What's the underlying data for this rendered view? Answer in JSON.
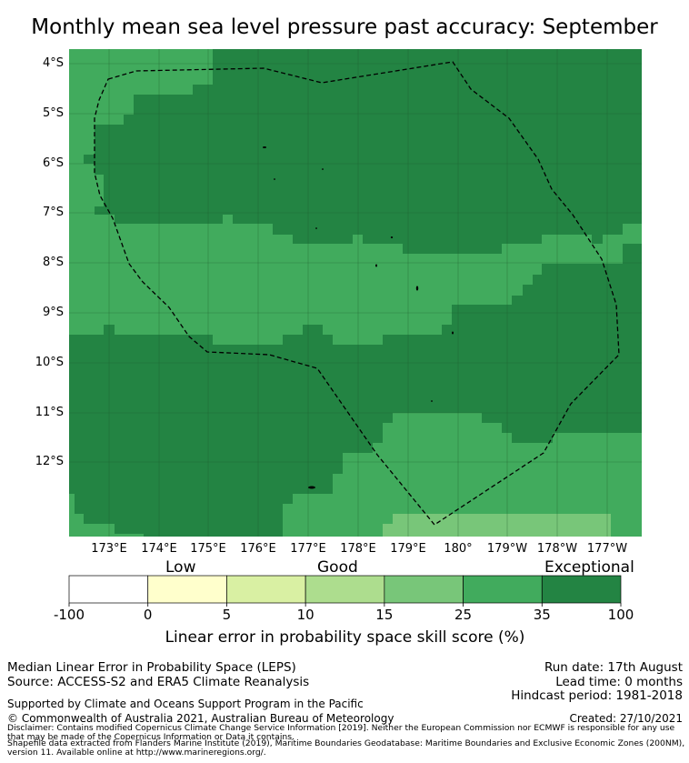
{
  "title": "Monthly mean sea level pressure past accuracy: September",
  "map": {
    "lat_labels": [
      "4°S",
      "5°S",
      "6°S",
      "7°S",
      "8°S",
      "9°S",
      "10°S",
      "11°S",
      "12°S"
    ],
    "lon_labels": [
      "173°E",
      "174°E",
      "175°E",
      "176°E",
      "177°E",
      "178°E",
      "179°E",
      "180°",
      "179°W",
      "178°W",
      "177°W"
    ],
    "outline_style": "dashed"
  },
  "colorbar": {
    "category_labels": [
      "Low",
      "Good",
      "Exceptional"
    ],
    "tick_labels": [
      "-100",
      "0",
      "5",
      "10",
      "15",
      "25",
      "35",
      "100"
    ],
    "colors": [
      "#ffffff",
      "#ffffcc",
      "#d9f0a3",
      "#addd8e",
      "#78c679",
      "#41ab5d",
      "#238443"
    ],
    "title": "Linear error in probability space skill score (%)"
  },
  "info": {
    "line1": "Median Linear Error in Probability Space (LEPS)",
    "line2": "Source: ACCESS-S2 and ERA5 Climate Reanalysis",
    "run_date": "Run date: 17th August",
    "lead_time": "Lead time: 0 months",
    "hindcast": "Hindcast period: 1981-2018",
    "supported": "Supported by Climate and Oceans Support Program in the Pacific",
    "copyright": "© Commonwealth of Australia 2021, Australian Bureau of Meteorology",
    "created": "Created: 27/10/2021",
    "disclaimer1": "Disclaimer: Contains modified Copernicus Climate Change Service Information [2019]. Neither the European Commission nor ECMWF is responsible for any use",
    "disclaimer2": "that may be made of the Copernicus Information or Data it contains.",
    "shapefile1": "Shapefile data extracted from Flanders Marine Institute (2019), Maritime Boundaries Geodatabase: Maritime Boundaries and Exclusive Economic Zones (200NM),",
    "shapefile2": "version 11. Available online at http://www.marineregions.org/."
  }
}
